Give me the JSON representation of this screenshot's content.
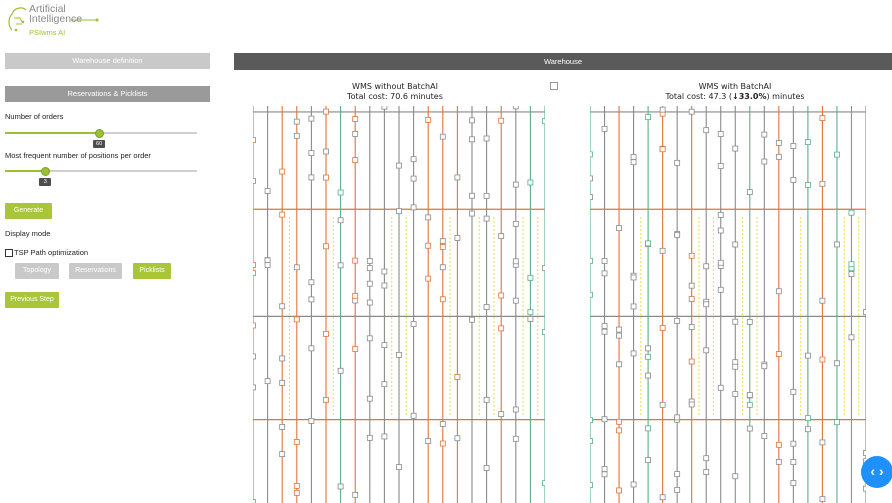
{
  "brand": {
    "line1": "Artificial",
    "line2": "Intelligence",
    "sub": "PSIwms AI",
    "accent": "#9ac034"
  },
  "sidebar": {
    "warehouse_definition": "Warehouse definition",
    "reservations_picklists": "Reservations & Picklists",
    "orders_label": "Number of orders",
    "orders_value": "60",
    "orders_fraction": 0.49,
    "positions_label": "Most frequent number of positions per order",
    "positions_value": "3",
    "positions_fraction": 0.21,
    "generate": "Generate",
    "display_mode": "Display mode",
    "tsp_label": "TSP Path optimization",
    "tsp_checked": false,
    "mode_buttons": [
      "Topology",
      "Reservations",
      "Picklists"
    ],
    "active_mode": "Picklists",
    "previous_step": "Previous Step"
  },
  "main": {
    "header": "Warehouse",
    "left_title": "WMS without BatchAI",
    "left_cost": "Total cost: 70.6 minutes",
    "right_title": "WMS with BatchAI",
    "right_cost_prefix": "Total cost: 47.3 (",
    "right_cost_delta": "↓33.0%",
    "right_cost_suffix": ") minutes"
  },
  "colors": {
    "orange": "#e0743a",
    "green": "#5aae8a",
    "yellow": "#f2df5a",
    "aisle": "#8a8a8a"
  },
  "icons": {
    "nav": "chevron-left-right-icon",
    "download": "download-icon"
  }
}
